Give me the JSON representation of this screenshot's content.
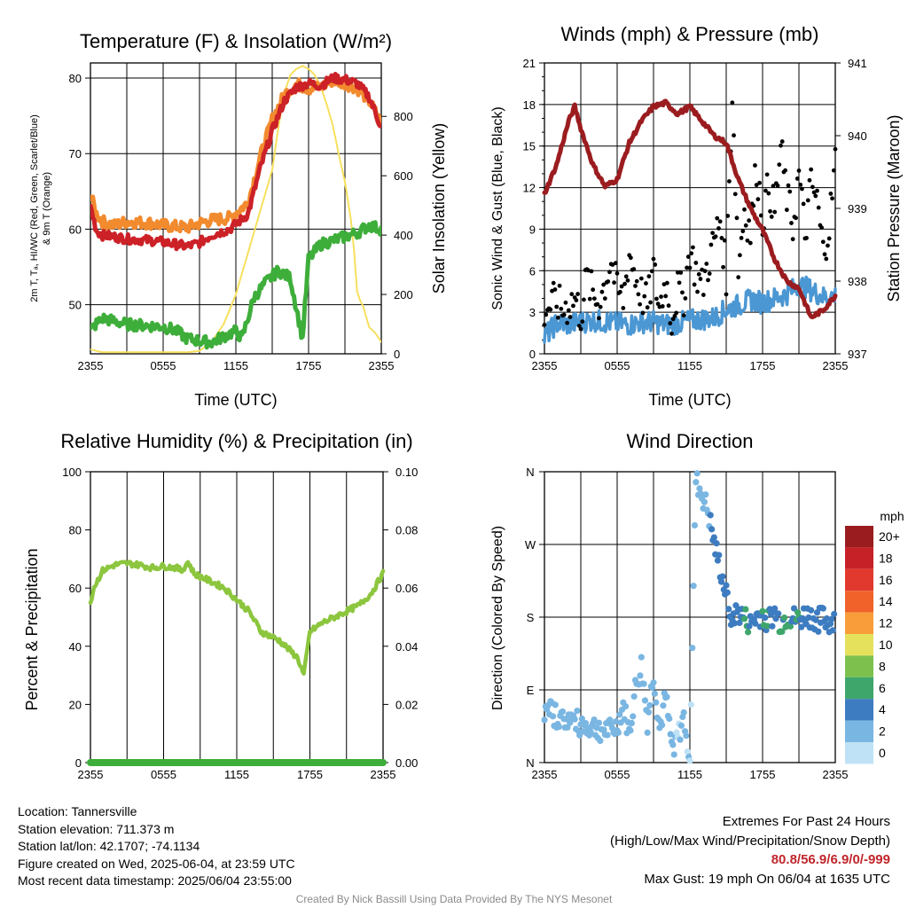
{
  "figure": {
    "credit": "Created By Nick Bassill Using Data Provided By The NYS Mesonet",
    "location": "Location: Tannersville",
    "elevation": "Station elevation: 711.373 m",
    "latlon": "Station lat/lon: 42.1707; -74.1134",
    "created": "Figure created on Wed, 2025-06-04, at 23:59 UTC",
    "recent": "Most recent data timestamp: 2025/06/04 23:55:00",
    "extremes_title": "Extremes For Past 24 Hours",
    "extremes_fields": "(High/Low/Max Wind/Precipitation/Snow Depth)",
    "extremes_values": "80.8/56.9/6.9/0/-999",
    "max_gust": "Max Gust: 19 mph On 06/04 at 1635 UTC"
  },
  "chart_data": [
    {
      "id": "temperature",
      "type": "line",
      "title": "Temperature (F) & Insolation (W/m²)",
      "xlabel": "Time (UTC)",
      "ylabel_lines": [
        "2m T, Tₐ, HI/WC (Red, Green, Scarlet/Blue)",
        "& 9m T (Orange)"
      ],
      "ylabel_right": "Solar Insolation (Yellow)",
      "x_ticks": [
        "2355",
        "0555",
        "1155",
        "1755",
        "2355"
      ],
      "ylim": [
        43.5,
        82
      ],
      "y_ticks": [
        50,
        60,
        70,
        80
      ],
      "ylim_right": [
        0,
        980
      ],
      "y_ticks_right": [
        0,
        200,
        400,
        600,
        800
      ],
      "colors": {
        "temp": "#cc2127",
        "temp9m": "#f28a2e",
        "dew": "#3eae3a",
        "solar": "#f7e05e"
      },
      "series": [
        {
          "key": "temp",
          "x": [
            0,
            1,
            2,
            4,
            6,
            10,
            12,
            16,
            18,
            20,
            23,
            26,
            28,
            30,
            32,
            34,
            36,
            38,
            40,
            42,
            44,
            46,
            47,
            48
          ],
          "values": [
            63,
            59.8,
            59.2,
            59,
            58.7,
            58.5,
            58.3,
            57.7,
            58.2,
            59.2,
            60,
            62,
            68,
            73,
            77,
            78.8,
            79.3,
            79,
            80,
            79.8,
            79.3,
            77.5,
            75.5,
            73.5
          ]
        },
        {
          "key": "temp9m",
          "x": [
            0,
            1,
            2,
            4,
            6,
            10,
            12,
            16,
            18,
            20,
            23,
            26,
            28,
            30,
            32,
            34,
            36,
            38,
            40,
            42,
            44,
            46,
            47,
            48
          ],
          "values": [
            64.5,
            62,
            61,
            60.5,
            61,
            60.8,
            60.5,
            60.2,
            60.8,
            61.2,
            61.5,
            63.5,
            69.5,
            74.5,
            77.8,
            79.2,
            78.6,
            78.8,
            79.7,
            79.3,
            78.7,
            77,
            75.5,
            74
          ]
        },
        {
          "key": "dew",
          "x": [
            0,
            1,
            2,
            4,
            6,
            10,
            12,
            14,
            16,
            18,
            20,
            22,
            24,
            25,
            27,
            29,
            31,
            33,
            34,
            35,
            36,
            37,
            38,
            40,
            42,
            44,
            46,
            48
          ],
          "values": [
            46.6,
            47.5,
            48.2,
            47.8,
            47.4,
            47.2,
            47.1,
            46.6,
            45.5,
            45.2,
            45,
            45.8,
            46.5,
            45.5,
            51,
            53,
            54.5,
            53.5,
            49.5,
            45.5,
            56,
            57,
            58,
            58.5,
            59,
            59.5,
            60.5,
            60
          ]
        },
        {
          "key": "solar",
          "axis": "right",
          "x": [
            0,
            2,
            8,
            16,
            18,
            20,
            22,
            24,
            26,
            28,
            30,
            31,
            32,
            33,
            34,
            35,
            36,
            37,
            38,
            39,
            40,
            41,
            42,
            43,
            43.5,
            44,
            44.5,
            45,
            46,
            47,
            48
          ],
          "values": [
            15,
            5,
            5,
            5,
            10,
            40,
            100,
            200,
            340,
            480,
            620,
            760,
            880,
            940,
            960,
            970,
            960,
            940,
            900,
            840,
            770,
            670,
            580,
            450,
            350,
            210,
            180,
            160,
            90,
            70,
            40
          ]
        }
      ]
    },
    {
      "id": "winds",
      "type": "scatter",
      "title": "Winds (mph) & Pressure (mb)",
      "xlabel": "Time (UTC)",
      "ylabel": "Sonic Wind & Gust (Blue, Black)",
      "ylabel_right": "Station Pressure (Maroon)",
      "x_ticks": [
        "2355",
        "0555",
        "1155",
        "1755",
        "2355"
      ],
      "ylim": [
        0,
        21
      ],
      "y_ticks": [
        0,
        3,
        6,
        9,
        12,
        15,
        18,
        21
      ],
      "ylim_right": [
        937,
        941
      ],
      "y_ticks_right": [
        937,
        938,
        939,
        940,
        941
      ],
      "colors": {
        "wind": "#4b97d3",
        "gust": "#000000",
        "pressure": "#9b1c1f"
      },
      "series": [
        {
          "key": "wind",
          "x": [
            0,
            2,
            4,
            6,
            8,
            10,
            12,
            14,
            16,
            18,
            20,
            22,
            24,
            26,
            28,
            30,
            32,
            34,
            36,
            38,
            40,
            42,
            44,
            46,
            48
          ],
          "values": [
            1.2,
            2.2,
            2.1,
            2.3,
            2.4,
            2.3,
            2.2,
            2.1,
            2.3,
            2.3,
            2.1,
            2.2,
            2.4,
            2.5,
            2.6,
            3.2,
            3.5,
            3.9,
            3.7,
            4.0,
            4.3,
            5.0,
            4.6,
            4.1,
            4.2
          ]
        },
        {
          "key": "gust",
          "x": [
            0,
            1,
            2,
            3,
            4,
            5,
            6,
            7,
            8,
            9,
            10,
            11,
            12,
            13,
            14,
            15,
            16,
            17,
            18,
            19,
            20,
            21,
            22,
            23,
            24,
            25,
            26,
            27,
            28,
            29,
            30,
            31,
            32,
            33,
            34,
            35,
            36,
            37,
            38,
            39,
            40,
            41,
            42,
            43,
            44,
            45,
            46,
            47,
            48
          ],
          "values": [
            3.2,
            3.5,
            3.8,
            3.1,
            3.6,
            4.0,
            2.8,
            5.5,
            4.2,
            3.7,
            5.1,
            6.8,
            4.5,
            3.9,
            7.3,
            5.6,
            4.3,
            3.5,
            6.0,
            3.3,
            5.4,
            2.5,
            4.6,
            4.2,
            7.6,
            5.9,
            4.8,
            6.5,
            8.1,
            9.7,
            5.7,
            19.0,
            6.2,
            10.5,
            8.8,
            13.5,
            9.8,
            12.1,
            10.3,
            14.8,
            11.4,
            9.2,
            13.0,
            8.6,
            12.2,
            11.0,
            7.4,
            9.3,
            13.9
          ]
        },
        {
          "key": "pressure",
          "axis": "right",
          "x": [
            0,
            2,
            4,
            5,
            6,
            8,
            10,
            12,
            14,
            16,
            18,
            20,
            22,
            24,
            26,
            28,
            30,
            32,
            34,
            36,
            38,
            40,
            42,
            44,
            46,
            47,
            48
          ],
          "values": [
            939.2,
            939.6,
            940.2,
            940.4,
            940.1,
            939.6,
            939.3,
            939.4,
            939.9,
            940.2,
            940.4,
            940.45,
            940.3,
            940.4,
            940.2,
            940.0,
            939.9,
            939.4,
            939.0,
            938.7,
            938.3,
            938.0,
            937.9,
            937.5,
            937.6,
            937.7,
            937.8
          ]
        }
      ]
    },
    {
      "id": "humidity",
      "type": "line",
      "title": "Relative Humidity (%) & Precipitation (in)",
      "ylabel": "Percent & Precipitation",
      "x_ticks": [
        "2355",
        "0555",
        "1155",
        "1755",
        "2355"
      ],
      "ylim": [
        0,
        100
      ],
      "y_ticks": [
        0,
        20,
        40,
        60,
        80,
        100
      ],
      "ylim_right": [
        0,
        0.1
      ],
      "y_ticks_right": [
        "0.00",
        "0.02",
        "0.04",
        "0.06",
        "0.08",
        "0.10"
      ],
      "colors": {
        "rh": "#8cc63e",
        "precip": "#3eae3a"
      },
      "series": [
        {
          "key": "rh",
          "x": [
            0,
            0.5,
            2,
            4,
            6,
            8,
            10,
            12,
            14,
            15,
            16,
            17,
            18,
            20,
            22,
            24,
            26,
            28,
            30,
            31,
            32,
            33,
            34,
            35,
            36,
            38,
            40,
            42,
            44,
            46,
            48
          ],
          "values": [
            55,
            60,
            66,
            68,
            68.5,
            68,
            67,
            67.5,
            67,
            66,
            69,
            65,
            64,
            62,
            60,
            56,
            52,
            45,
            43,
            42,
            40,
            38,
            36,
            30,
            45,
            48,
            50,
            52,
            54,
            58,
            65
          ]
        },
        {
          "key": "precip",
          "axis": "right",
          "x": [
            0,
            48
          ],
          "values": [
            0,
            0
          ]
        }
      ]
    },
    {
      "id": "direction",
      "type": "scatter",
      "title": "Wind Direction",
      "ylabel": "Direction (Colored By Speed)",
      "x_ticks": [
        "2355",
        "0555",
        "1155",
        "1755",
        "2355"
      ],
      "y_ticks": [
        "N",
        "E",
        "S",
        "W",
        "N"
      ],
      "ylim": [
        0,
        360
      ],
      "colorbar": {
        "unit": "mph",
        "labels": [
          "20+",
          "18",
          "16",
          "14",
          "12",
          "10",
          "8",
          "6",
          "4",
          "2",
          "0"
        ],
        "colors": [
          "#9b1c1f",
          "#c62127",
          "#e2392e",
          "#f0622a",
          "#f99d3a",
          "#e6e15d",
          "#7dc04e",
          "#3ea66b",
          "#3d7cc0",
          "#7ab6e2",
          "#bfe2f6"
        ]
      },
      "series": [
        {
          "key": "direction",
          "x": [
            0,
            1,
            2,
            3,
            4,
            5,
            6,
            7,
            8,
            9,
            10,
            11,
            12,
            13,
            14,
            15,
            16,
            17,
            18,
            19,
            20,
            21,
            22,
            23,
            24,
            25,
            26,
            27,
            28,
            29,
            30,
            31,
            32,
            33,
            34,
            35,
            36,
            37,
            38,
            39,
            40,
            41,
            42,
            43,
            44,
            45,
            46,
            47,
            48
          ],
          "values": [
            60,
            62,
            58,
            52,
            55,
            50,
            48,
            45,
            44,
            42,
            40,
            38,
            45,
            70,
            35,
            90,
            120,
            50,
            110,
            40,
            80,
            20,
            30,
            55,
            10,
            350,
            330,
            310,
            270,
            240,
            205,
            180,
            185,
            178,
            170,
            180,
            182,
            176,
            185,
            172,
            180,
            178,
            175,
            182,
            180,
            176,
            178,
            172,
            180
          ],
          "speeds": [
            2,
            2,
            2,
            2,
            2,
            2,
            2,
            2,
            2,
            2,
            2,
            2,
            2,
            2,
            2,
            2,
            2,
            2,
            2,
            2,
            2,
            2,
            1,
            2,
            1,
            2,
            2,
            2,
            5,
            4,
            4,
            4,
            4,
            5,
            4,
            4,
            5,
            5,
            4,
            5,
            5,
            4,
            5,
            4,
            4,
            4,
            4,
            4,
            4
          ]
        }
      ]
    }
  ]
}
